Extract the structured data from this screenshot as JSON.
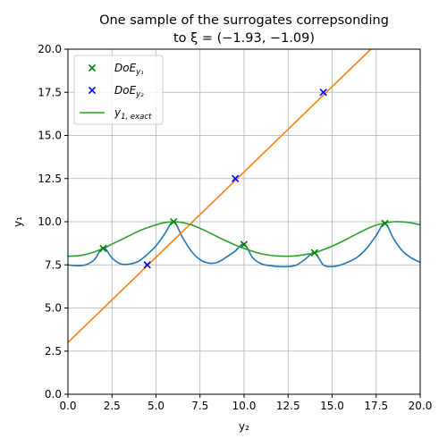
{
  "chart_data": {
    "type": "line",
    "title_line1": "One sample of the surrogates correpsonding",
    "title_line2": "to ξ = (−1.93, −1.09)",
    "xlabel": "y₂",
    "ylabel": "y₁",
    "xlim": [
      0,
      20
    ],
    "ylim": [
      0,
      20
    ],
    "xticks": [
      "0.0",
      "2.5",
      "5.0",
      "7.5",
      "10.0",
      "12.5",
      "15.0",
      "17.5",
      "20.0"
    ],
    "yticks": [
      "0.0",
      "2.5",
      "5.0",
      "7.5",
      "10.0",
      "12.5",
      "15.0",
      "17.5",
      "20.0"
    ],
    "grid": true,
    "legend_position": "top-left",
    "colors": {
      "surrogate_y1": "#1f77b4",
      "surrogate_y2": "#ff7f0e",
      "exact_y1": "#2ca02c",
      "doe_y1": "#008000",
      "doe_y2": "#0000ff",
      "grid": "#b0b0b0"
    },
    "legend": [
      {
        "label": "DoE",
        "sub": "y₁",
        "marker": "x",
        "color": "#008000"
      },
      {
        "label": "DoE",
        "sub": "y₂",
        "marker": "x",
        "color": "#0000ff"
      },
      {
        "label": "y",
        "sub": "1, exact",
        "marker": "line",
        "color": "#2ca02c"
      }
    ],
    "series": [
      {
        "key": "surrogate_y1",
        "style": "line",
        "x": [
          0,
          0.5,
          1,
          1.5,
          2,
          2.5,
          3,
          3.5,
          4,
          4.5,
          5,
          5.5,
          6,
          6.5,
          7,
          7.5,
          8,
          8.5,
          9,
          9.5,
          10,
          10.5,
          11,
          11.5,
          12,
          12.5,
          13,
          13.5,
          14,
          14.5,
          15,
          15.5,
          16,
          16.5,
          17,
          17.5,
          18,
          18.5,
          19,
          19.5,
          20
        ],
        "y": [
          7.5,
          7.45,
          7.5,
          7.8,
          8.5,
          7.9,
          7.55,
          7.55,
          7.7,
          8.1,
          8.6,
          9.3,
          10.0,
          9.1,
          8.3,
          7.8,
          7.6,
          7.65,
          7.95,
          8.3,
          8.7,
          7.9,
          7.55,
          7.45,
          7.4,
          7.4,
          7.5,
          7.85,
          8.2,
          7.5,
          7.4,
          7.5,
          7.7,
          8.0,
          8.5,
          9.2,
          9.9,
          9.0,
          8.3,
          7.9,
          7.65
        ]
      },
      {
        "key": "surrogate_y2",
        "style": "line",
        "x": [
          0,
          17.2
        ],
        "y": [
          3.0,
          20.0
        ]
      },
      {
        "key": "exact_y1",
        "style": "line",
        "x": [
          0,
          0.5,
          1,
          1.5,
          2,
          2.5,
          3,
          3.5,
          4,
          4.5,
          5,
          5.5,
          6,
          6.5,
          7,
          7.5,
          8,
          8.5,
          9,
          9.5,
          10,
          10.5,
          11,
          11.5,
          12,
          12.5,
          13,
          13.5,
          14,
          14.5,
          15,
          15.5,
          16,
          16.5,
          17,
          17.5,
          18,
          18.5,
          19,
          19.5,
          20
        ],
        "y": [
          8.0,
          8.02,
          8.1,
          8.25,
          8.45,
          8.7,
          8.95,
          9.2,
          9.45,
          9.65,
          9.82,
          9.95,
          10.0,
          9.95,
          9.82,
          9.62,
          9.38,
          9.12,
          8.88,
          8.65,
          8.45,
          8.28,
          8.14,
          8.05,
          8.01,
          8.0,
          8.03,
          8.1,
          8.2,
          8.38,
          8.58,
          8.82,
          9.08,
          9.35,
          9.6,
          9.8,
          9.93,
          10.0,
          9.99,
          9.93,
          9.82
        ]
      }
    ],
    "doe_y1": {
      "x": [
        2,
        6,
        10,
        14,
        18
      ],
      "y": [
        8.45,
        10.0,
        8.68,
        8.2,
        9.9
      ]
    },
    "doe_y2": {
      "x": [
        4.5,
        9.5,
        14.5
      ],
      "y": [
        7.5,
        12.5,
        17.5
      ]
    }
  }
}
